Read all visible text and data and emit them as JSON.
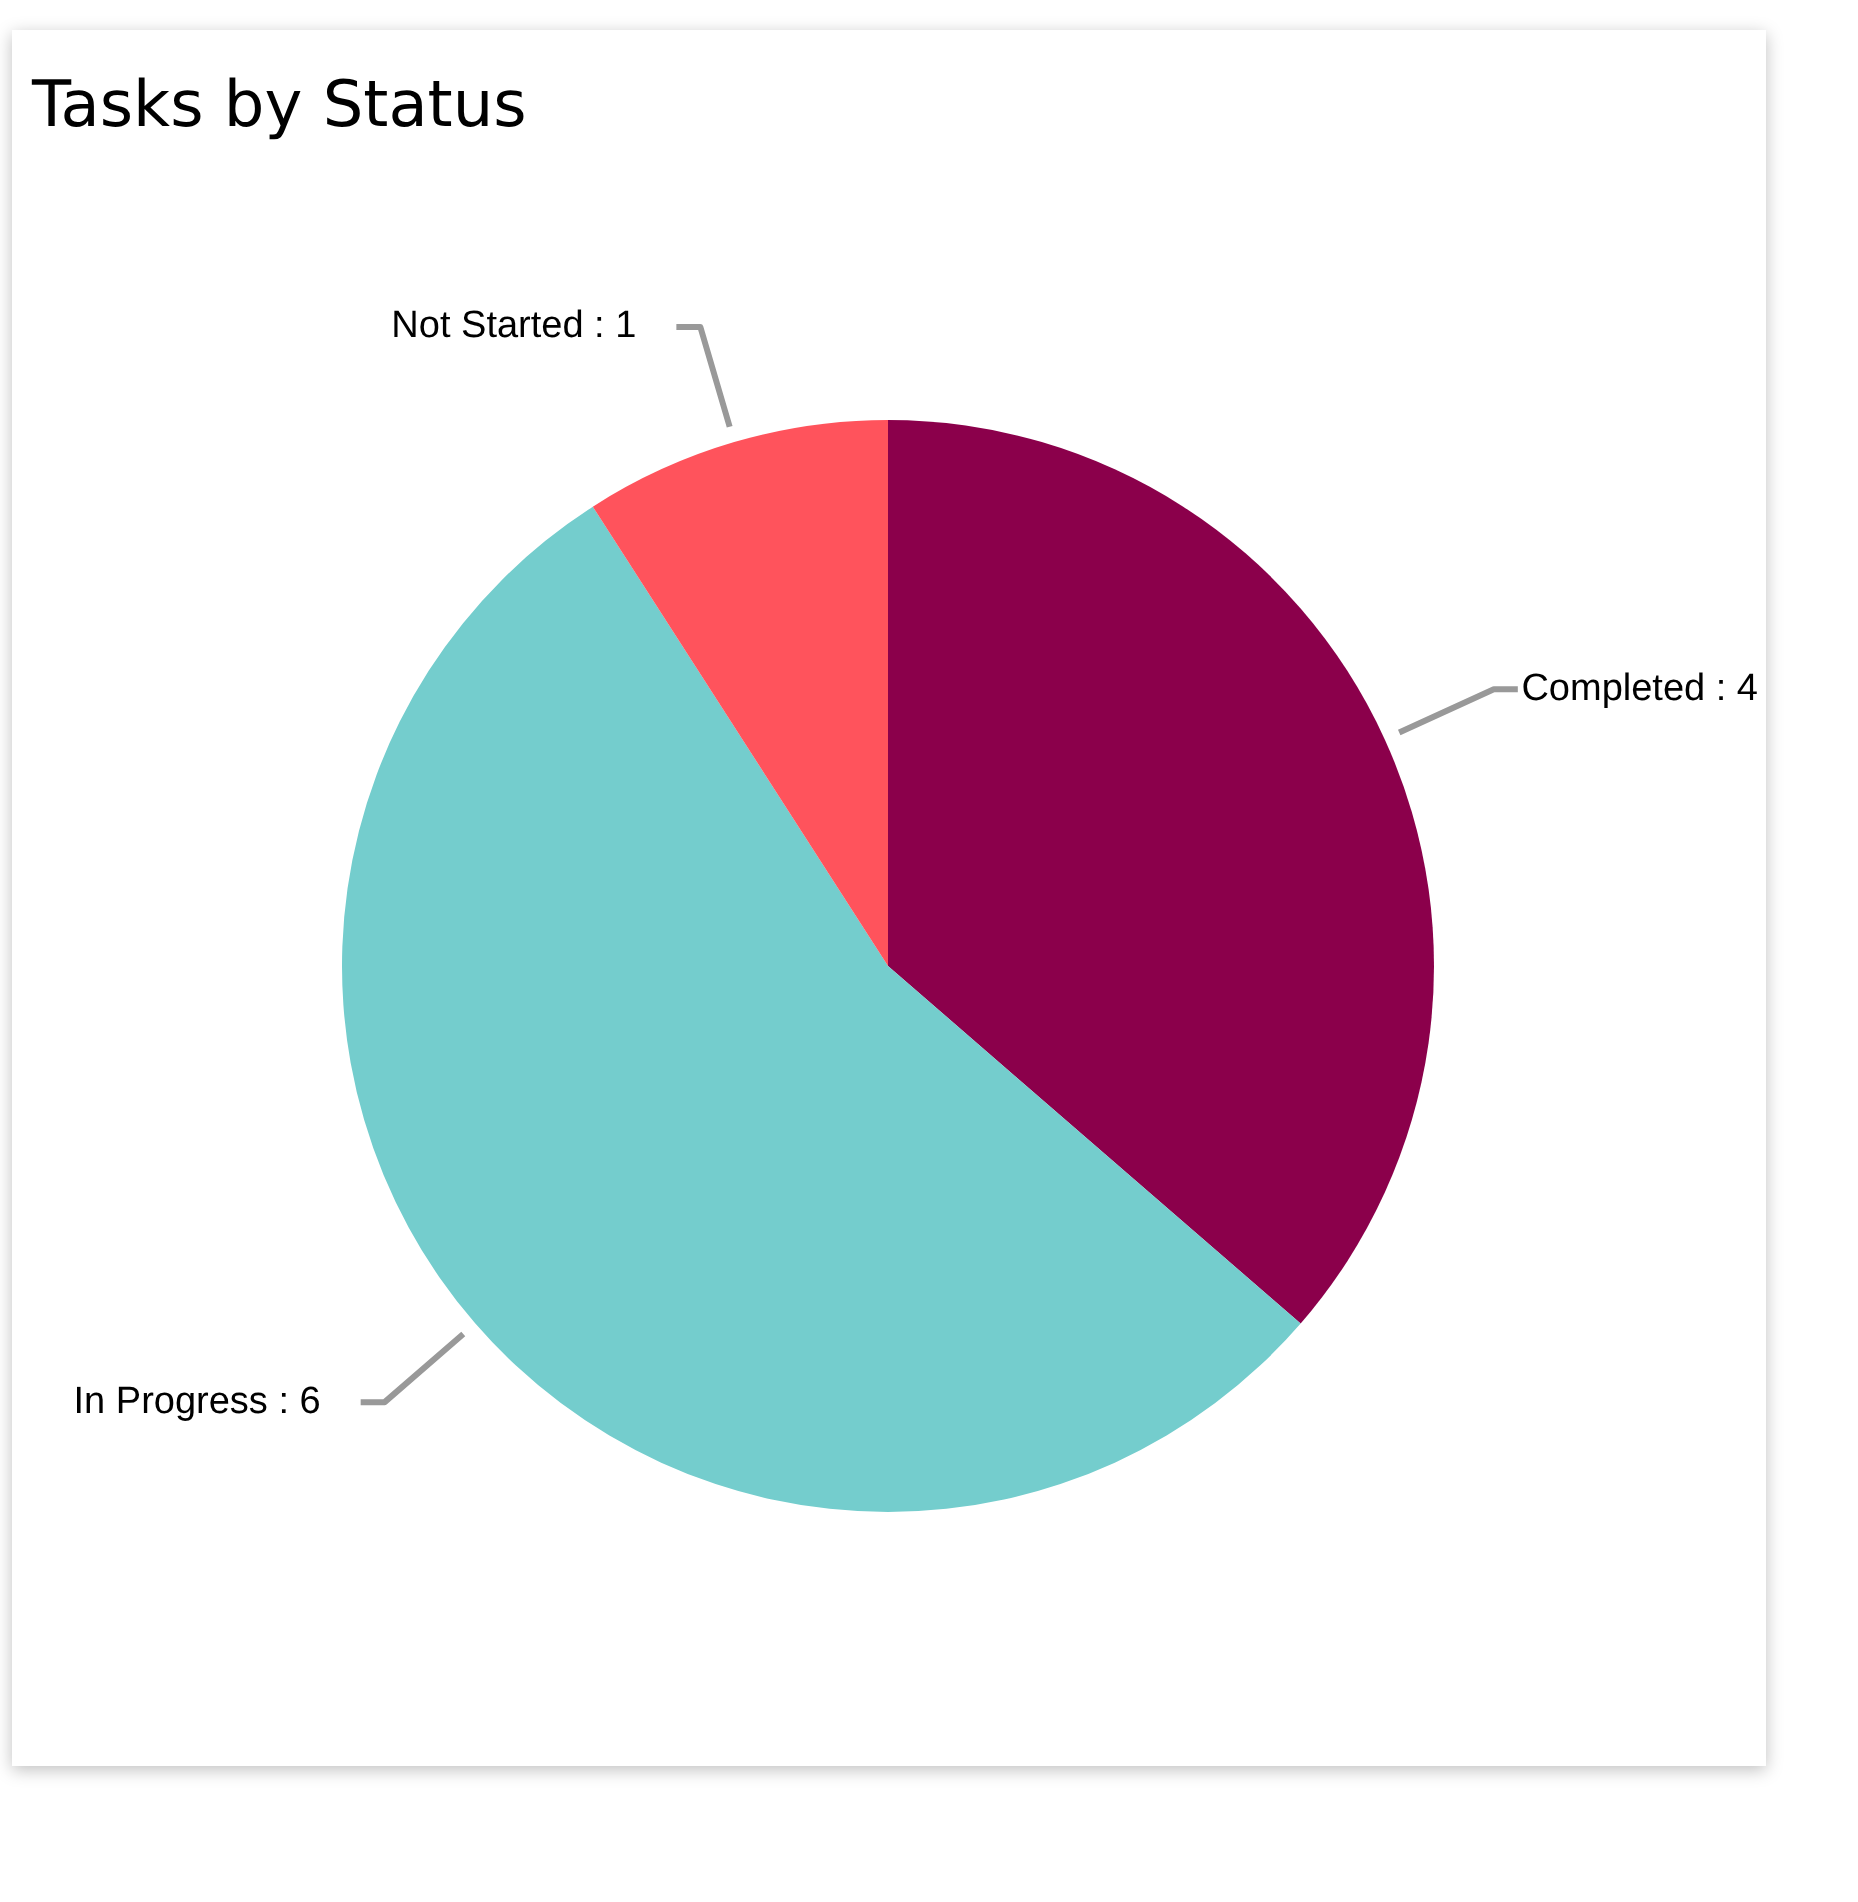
{
  "chart_data": {
    "type": "pie",
    "title": "Tasks by Status",
    "categories": [
      "Completed",
      "In Progress",
      "Not Started"
    ],
    "values": [
      4,
      6,
      1
    ],
    "colors": [
      "#8b004b",
      "#74cdcd",
      "#ff535c"
    ],
    "value_labels": [
      ": 4",
      ": 6",
      ": 1"
    ]
  }
}
